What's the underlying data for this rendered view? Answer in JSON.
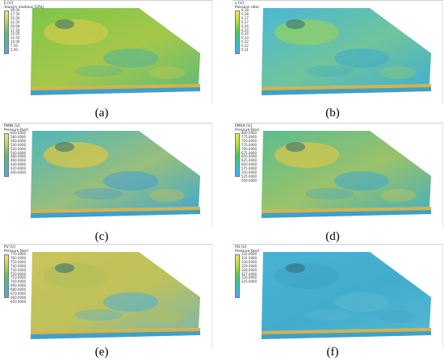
{
  "panels": [
    {
      "id": "a",
      "caption": "(a)",
      "legend_title": "E [U]",
      "legend_subtitle": "Young's modulus [GPa]",
      "ticks": [
        "30.00",
        "27.50",
        "25.00",
        "22.50",
        "20.00",
        "17.50",
        "15.00",
        "12.50",
        "10.00",
        "7.50",
        "5.00"
      ],
      "colorbar": [
        "#f2e55a",
        "#c9e24a",
        "#8fd44a",
        "#55c45a",
        "#3cc0a0",
        "#3fb6d8",
        "#4aa8e8"
      ],
      "surface": "#7cc548",
      "patch": "#c9c94a",
      "accent": "#4fb59a"
    },
    {
      "id": "b",
      "caption": "(b)",
      "legend_title": "ν [U]",
      "legend_subtitle": "Poissons ratio",
      "ticks": [
        "0.28",
        "0.28",
        "0.27",
        "0.27",
        "0.26",
        "0.25",
        "0.24",
        "0.23",
        "0.22",
        "0.22",
        "0.21"
      ],
      "colorbar": [
        "#f2e55a",
        "#c9e24a",
        "#8fd44a",
        "#55c45a",
        "#3cc0a0",
        "#3fb6d8",
        "#4aa8e8"
      ],
      "surface": "#48b8d6",
      "patch": "#8fce6a",
      "accent": "#3fa9c9"
    },
    {
      "id": "c",
      "caption": "(c)",
      "legend_title": "PMIN [U]",
      "legend_subtitle": "Pressure [bar]",
      "ticks": [
        "600.0000",
        "580.0000",
        "560.0000",
        "540.0000",
        "520.0000",
        "500.0000",
        "480.0000",
        "460.0000",
        "440.0000",
        "420.0000",
        "400.0000"
      ],
      "colorbar": [
        "#f2e55a",
        "#c9e24a",
        "#8fd44a",
        "#55c45a",
        "#3cc0a0",
        "#3fb6d8",
        "#4aa8e8"
      ],
      "surface": "#4fb6b8",
      "patch": "#d3c54c",
      "accent": "#3f9fd6"
    },
    {
      "id": "d",
      "caption": "(d)",
      "legend_title": "PMAX [U]",
      "legend_subtitle": "Pressure [bar]",
      "ticks": [
        "800.0000",
        "775.0000",
        "750.0000",
        "725.0000",
        "700.0000",
        "675.0000",
        "650.0000",
        "625.0000",
        "600.0000",
        "575.0000",
        "550.0000",
        "525.0000",
        "500.0000"
      ],
      "colorbar": [
        "#f2e55a",
        "#c9e24a",
        "#8fd44a",
        "#55c45a",
        "#3cc0a0",
        "#3fb6d8",
        "#4aa8e8"
      ],
      "surface": "#5cbd8e",
      "patch": "#cdc64e",
      "accent": "#3ea7d2"
    },
    {
      "id": "e",
      "caption": "(e)",
      "legend_title": "PV [U]",
      "legend_subtitle": "Pressure [bar]",
      "ticks": [
        "770.0000",
        "760.0000",
        "750.0000",
        "740.0000",
        "730.0000",
        "720.0000",
        "710.0000",
        "700.0000",
        "690.0000",
        "680.0000",
        "670.0000",
        "660.0000",
        "650.0000"
      ],
      "colorbar": [
        "#f2e55a",
        "#c9e24a",
        "#8fd44a",
        "#55c45a",
        "#3cc0a0",
        "#3fb6d8",
        "#4aa8e8"
      ],
      "surface": "#c9c45a",
      "patch": "#b5bf5a",
      "accent": "#4aaedf"
    },
    {
      "id": "f",
      "caption": "(f)",
      "legend_title": "PO [U]",
      "legend_subtitle": "Pressure [bar]",
      "ticks": [
        "332.0000",
        "331.0000",
        "330.0000",
        "329.0000",
        "328.0000",
        "327.0000",
        "326.0000",
        "325.0000"
      ],
      "colorbar": [
        "#f2e55a",
        "#c9e24a",
        "#8fd44a",
        "#55c45a",
        "#3cc0a0",
        "#3fb6d8",
        "#4aa8e8"
      ],
      "surface": "#47b3d3",
      "patch": "#3ea6c8",
      "accent": "#5ab9d0"
    }
  ]
}
